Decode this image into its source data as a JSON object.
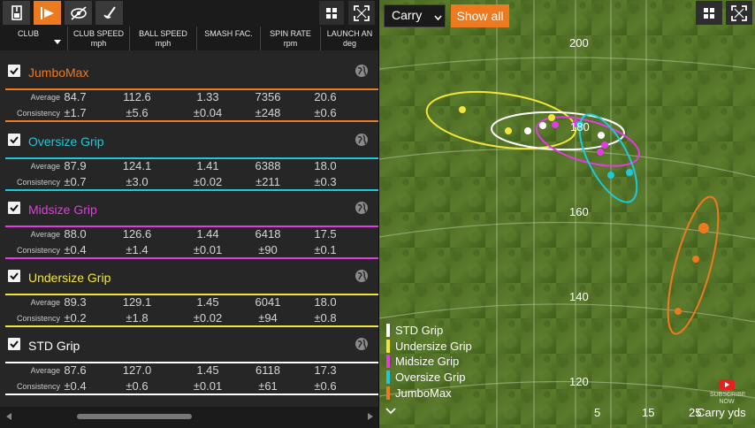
{
  "toolbar": {
    "icons": [
      "save-icon",
      "play-filter-icon",
      "eye-off-icon",
      "club-icon"
    ],
    "active_index": 1
  },
  "columns": [
    {
      "name": "CLUB",
      "unit": ""
    },
    {
      "name": "CLUB SPEED",
      "unit": "mph"
    },
    {
      "name": "BALL SPEED",
      "unit": "mph"
    },
    {
      "name": "SMASH FAC.",
      "unit": ""
    },
    {
      "name": "SPIN RATE",
      "unit": "rpm"
    },
    {
      "name": "LAUNCH AN",
      "unit": "deg"
    }
  ],
  "row_labels": {
    "average": "Average",
    "consistency": "Consistency"
  },
  "clubs": [
    {
      "name": "JumboMax",
      "color": "#ee7a20",
      "checked": true,
      "average": [
        "84.7",
        "112.6",
        "1.33",
        "7356",
        "20.6"
      ],
      "consistency": [
        "±1.7",
        "±5.6",
        "±0.04",
        "±248",
        "±0.6"
      ]
    },
    {
      "name": "Oversize Grip",
      "color": "#1ec9dc",
      "checked": true,
      "average": [
        "87.9",
        "124.1",
        "1.41",
        "6388",
        "18.0"
      ],
      "consistency": [
        "±0.7",
        "±3.0",
        "±0.02",
        "±211",
        "±0.3"
      ]
    },
    {
      "name": "Midsize Grip",
      "color": "#e23ce0",
      "checked": true,
      "average": [
        "88.0",
        "126.6",
        "1.44",
        "6418",
        "17.5"
      ],
      "consistency": [
        "±0.4",
        "±1.4",
        "±0.01",
        "±90",
        "±0.1"
      ]
    },
    {
      "name": "Undersize Grip",
      "color": "#f1e53a",
      "checked": true,
      "average": [
        "89.3",
        "129.1",
        "1.45",
        "6041",
        "18.0"
      ],
      "consistency": [
        "±0.2",
        "±1.8",
        "±0.02",
        "±94",
        "±0.8"
      ]
    },
    {
      "name": "STD Grip",
      "color": "#ffffff",
      "checked": true,
      "average": [
        "87.6",
        "127.0",
        "1.45",
        "6118",
        "17.3"
      ],
      "consistency": [
        "±0.4",
        "±0.6",
        "±0.01",
        "±61",
        "±0.6"
      ]
    }
  ],
  "plot": {
    "metric_select": "Carry",
    "show_all_label": "Show all",
    "right_icons": [
      "grid-view-icon",
      "fullscreen-icon"
    ],
    "y_ticks": [
      "200",
      "180",
      "160",
      "140",
      "120"
    ],
    "x_ticks": [
      "5",
      "15",
      "25"
    ],
    "axis_label": "Carry  yds",
    "legend": [
      {
        "name": "STD Grip",
        "color": "#ffffff"
      },
      {
        "name": "Undersize Grip",
        "color": "#f1e53a"
      },
      {
        "name": "Midsize Grip",
        "color": "#e23ce0"
      },
      {
        "name": "Oversize Grip",
        "color": "#1ec9dc"
      },
      {
        "name": "JumboMax",
        "color": "#ee7a20"
      }
    ],
    "watermark_text": "SUBSCRIBE NOW"
  }
}
